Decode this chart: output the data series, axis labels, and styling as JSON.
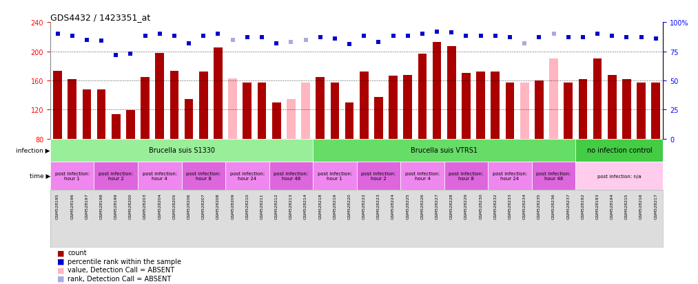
{
  "title": "GDS4432 / 1423351_at",
  "samples": [
    "GSM528195",
    "GSM528196",
    "GSM528197",
    "GSM528198",
    "GSM528199",
    "GSM528200",
    "GSM528203",
    "GSM528204",
    "GSM528205",
    "GSM528206",
    "GSM528207",
    "GSM528208",
    "GSM528209",
    "GSM528210",
    "GSM528211",
    "GSM528212",
    "GSM528213",
    "GSM528214",
    "GSM528218",
    "GSM528219",
    "GSM528220",
    "GSM528222",
    "GSM528223",
    "GSM528224",
    "GSM528225",
    "GSM528226",
    "GSM528227",
    "GSM528228",
    "GSM528229",
    "GSM528230",
    "GSM528232",
    "GSM528233",
    "GSM528234",
    "GSM528235",
    "GSM528236",
    "GSM528237",
    "GSM528192",
    "GSM528193",
    "GSM528194",
    "GSM528215",
    "GSM528216",
    "GSM528217"
  ],
  "values": [
    173,
    162,
    148,
    148,
    114,
    119,
    165,
    198,
    173,
    135,
    172,
    205,
    163,
    157,
    157,
    130,
    135,
    157,
    165,
    157,
    130,
    172,
    137,
    167,
    168,
    197,
    213,
    207,
    170,
    172,
    172,
    157,
    157,
    160,
    190,
    157,
    162,
    190,
    168,
    162,
    157,
    157
  ],
  "absent": [
    false,
    false,
    false,
    false,
    false,
    false,
    false,
    false,
    false,
    false,
    false,
    false,
    true,
    false,
    false,
    false,
    true,
    true,
    false,
    false,
    false,
    false,
    false,
    false,
    false,
    false,
    false,
    false,
    false,
    false,
    false,
    false,
    true,
    false,
    true,
    false,
    false,
    false,
    false,
    false,
    false,
    false
  ],
  "percentile_ranks": [
    90,
    88,
    85,
    84,
    72,
    73,
    88,
    90,
    88,
    82,
    88,
    90,
    85,
    87,
    87,
    82,
    83,
    85,
    87,
    86,
    81,
    88,
    83,
    88,
    88,
    90,
    92,
    91,
    88,
    88,
    88,
    87,
    82,
    87,
    90,
    87,
    87,
    90,
    88,
    87,
    87,
    86
  ],
  "absent_rank": [
    false,
    false,
    false,
    false,
    false,
    false,
    false,
    false,
    false,
    false,
    false,
    false,
    true,
    false,
    false,
    false,
    true,
    true,
    false,
    false,
    false,
    false,
    false,
    false,
    false,
    false,
    false,
    false,
    false,
    false,
    false,
    false,
    true,
    false,
    true,
    false,
    false,
    false,
    false,
    false,
    false,
    false
  ],
  "ylim": [
    80,
    240
  ],
  "yticks": [
    80,
    120,
    160,
    200,
    240
  ],
  "right_yticks": [
    0,
    25,
    50,
    75,
    100
  ],
  "bar_color": "#AA0000",
  "absent_bar_color": "#FFB6C1",
  "rank_color": "#0000CC",
  "absent_rank_color": "#AAAADD",
  "infection_groups": [
    {
      "label": "Brucella suis S1330",
      "start": 0,
      "end": 18,
      "color": "#99EE99"
    },
    {
      "label": "Brucella suis VTRS1",
      "start": 18,
      "end": 36,
      "color": "#66DD66"
    },
    {
      "label": "no infection control",
      "start": 36,
      "end": 42,
      "color": "#44CC44"
    }
  ],
  "time_groups": [
    {
      "label": "post infection:\nhour 1",
      "start": 0,
      "end": 3,
      "color": "#EE88EE"
    },
    {
      "label": "post infection:\nhour 2",
      "start": 3,
      "end": 6,
      "color": "#DD66DD"
    },
    {
      "label": "post infection:\nhour 4",
      "start": 6,
      "end": 9,
      "color": "#EE88EE"
    },
    {
      "label": "post infection:\nhour 8",
      "start": 9,
      "end": 12,
      "color": "#DD66DD"
    },
    {
      "label": "post infection:\nhour 24",
      "start": 12,
      "end": 15,
      "color": "#EE88EE"
    },
    {
      "label": "post infection:\nhour 48",
      "start": 15,
      "end": 18,
      "color": "#DD66DD"
    },
    {
      "label": "post infection:\nhour 1",
      "start": 18,
      "end": 21,
      "color": "#EE88EE"
    },
    {
      "label": "post infection:\nhour 2",
      "start": 21,
      "end": 24,
      "color": "#DD66DD"
    },
    {
      "label": "post infection:\nhour 4",
      "start": 24,
      "end": 27,
      "color": "#EE88EE"
    },
    {
      "label": "post infection:\nhour 8",
      "start": 27,
      "end": 30,
      "color": "#DD66DD"
    },
    {
      "label": "post infection:\nhour 24",
      "start": 30,
      "end": 33,
      "color": "#EE88EE"
    },
    {
      "label": "post infection:\nhour 48",
      "start": 33,
      "end": 36,
      "color": "#DD66DD"
    },
    {
      "label": "post infection: n/a",
      "start": 36,
      "end": 42,
      "color": "#FFCCEE"
    }
  ],
  "background_color": "#DDDDDD",
  "plot_bg_color": "#FFFFFF"
}
